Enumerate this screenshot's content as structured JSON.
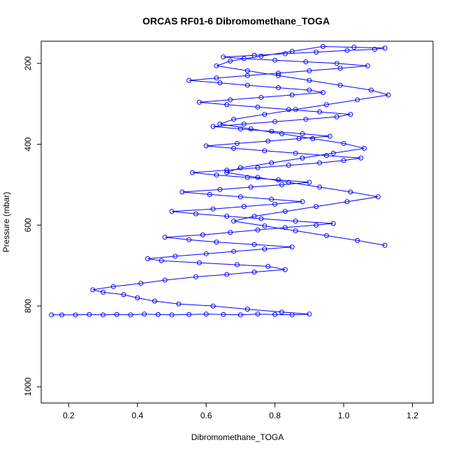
{
  "chart_data": {
    "type": "line",
    "title": "ORCAS RF01-6 Dibromomethane_TOGA",
    "xlabel": "Dibromomethane_TOGA",
    "ylabel": "Pressure (mbar)",
    "xlim": [
      0.12,
      1.26
    ],
    "ylim": [
      1040,
      145
    ],
    "y_reversed": true,
    "xticks": [
      0.2,
      0.4,
      0.6,
      0.8,
      1.0,
      1.2
    ],
    "xtick_labels": [
      "0.2",
      "0.4",
      "0.6",
      "0.8",
      "1.0",
      "1.2"
    ],
    "yticks": [
      200,
      400,
      600,
      800,
      1000
    ],
    "ytick_labels": [
      "200",
      "400",
      "600",
      "800",
      "1000"
    ],
    "grid": false,
    "legend": "none",
    "series": [
      {
        "color": "#0000ff",
        "marker": "open-circle",
        "x": [
          0.15,
          0.18,
          0.22,
          0.26,
          0.3,
          0.34,
          0.38,
          0.42,
          0.46,
          0.5,
          0.55,
          0.6,
          0.65,
          0.7,
          0.75,
          0.8,
          0.85,
          0.9,
          0.82,
          0.72,
          0.62,
          0.52,
          0.45,
          0.4,
          0.36,
          0.3,
          0.27,
          0.33,
          0.41,
          0.48,
          0.57,
          0.66,
          0.74,
          0.83,
          0.78,
          0.69,
          0.58,
          0.47,
          0.43,
          0.51,
          0.6,
          0.68,
          0.77,
          0.85,
          0.74,
          0.63,
          0.55,
          0.48,
          0.59,
          0.67,
          0.75,
          0.83,
          0.92,
          0.97,
          0.86,
          0.76,
          0.66,
          0.57,
          0.5,
          0.62,
          0.71,
          0.8,
          0.88,
          0.79,
          0.7,
          0.61,
          0.53,
          0.64,
          0.73,
          0.82,
          0.9,
          0.81,
          0.72,
          0.63,
          0.56,
          0.66,
          0.75,
          0.84,
          0.93,
          1.0,
          1.05,
          0.95,
          0.86,
          0.77,
          0.68,
          0.6,
          0.69,
          0.78,
          0.87,
          0.96,
          0.88,
          0.79,
          0.7,
          0.62,
          0.71,
          0.8,
          0.89,
          0.98,
          1.02,
          0.93,
          0.84,
          0.75,
          0.66,
          0.58,
          0.67,
          0.76,
          0.85,
          0.94,
          0.9,
          0.81,
          0.72,
          0.64,
          0.55,
          0.63,
          0.72,
          0.81,
          0.9,
          0.99,
          1.07,
          0.98,
          0.89,
          0.8,
          0.71,
          0.65,
          0.74,
          0.83,
          0.92,
          1.01,
          1.09,
          1.12,
          1.03,
          0.94,
          0.85,
          0.76,
          0.67,
          0.63,
          0.72,
          0.81,
          0.9,
          0.99,
          1.08,
          1.13,
          1.04,
          0.95,
          0.86,
          0.77,
          0.68,
          0.64,
          0.73,
          0.82,
          0.91,
          1.0,
          1.06,
          0.97,
          0.88,
          0.79,
          0.7,
          0.66,
          0.75,
          0.84,
          0.93,
          1.02,
          1.1,
          1.01,
          0.92,
          0.83,
          0.74,
          0.68,
          0.77,
          0.86,
          0.95,
          1.04,
          1.12
        ],
        "y": [
          822,
          822,
          822,
          821,
          822,
          821,
          822,
          820,
          821,
          822,
          821,
          820,
          821,
          822,
          820,
          821,
          822,
          820,
          815,
          808,
          800,
          795,
          788,
          780,
          772,
          766,
          760,
          752,
          744,
          736,
          728,
          722,
          716,
          710,
          702,
          698,
          693,
          688,
          683,
          677,
          671,
          665,
          659,
          654,
          648,
          642,
          636,
          630,
          624,
          618,
          612,
          606,
          600,
          596,
          590,
          584,
          578,
          572,
          566,
          560,
          554,
          548,
          542,
          536,
          530,
          524,
          518,
          512,
          506,
          500,
          494,
          488,
          482,
          476,
          470,
          464,
          458,
          452,
          446,
          440,
          434,
          428,
          422,
          416,
          410,
          404,
          398,
          392,
          386,
          380,
          374,
          368,
          362,
          356,
          350,
          344,
          338,
          332,
          326,
          320,
          314,
          308,
          302,
          296,
          290,
          284,
          278,
          272,
          266,
          260,
          254,
          248,
          242,
          236,
          230,
          224,
          218,
          212,
          206,
          200,
          196,
          192,
          188,
          184,
          180,
          176,
          172,
          168,
          165,
          162,
          160,
          158,
          170,
          182,
          194,
          206,
          218,
          230,
          242,
          254,
          266,
          278,
          290,
          302,
          314,
          326,
          338,
          350,
          362,
          374,
          386,
          398,
          410,
          422,
          434,
          446,
          458,
          470,
          482,
          494,
          506,
          518,
          530,
          542,
          554,
          566,
          578,
          590,
          602,
          614,
          626,
          638,
          650
        ]
      }
    ]
  }
}
